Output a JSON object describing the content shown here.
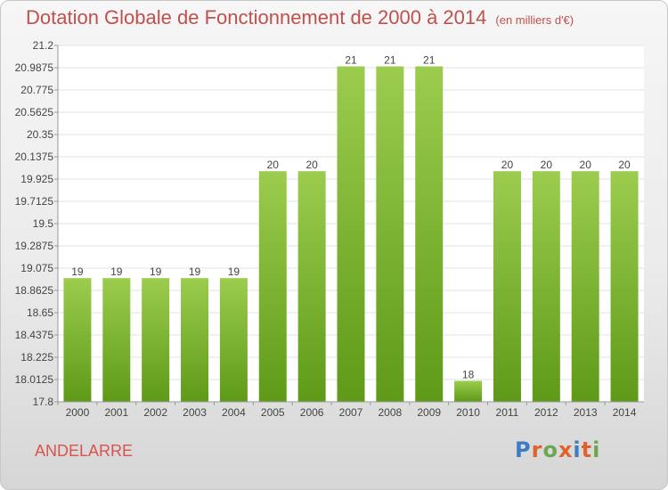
{
  "title": "Dotation Globale de Fonctionnement de 2000 à 2014",
  "subtitle": "(en milliers d'€)",
  "commune": "ANDELARRE",
  "logo": {
    "text": "Proxiti",
    "colors": [
      "#3b7dc4",
      "#e0632d",
      "#6aa84f",
      "#e0632d",
      "#3b7dc4",
      "#e0632d",
      "#6aa84f"
    ]
  },
  "chart_data": {
    "type": "bar",
    "categories": [
      "2000",
      "2001",
      "2002",
      "2003",
      "2004",
      "2005",
      "2006",
      "2007",
      "2008",
      "2009",
      "2010",
      "2011",
      "2012",
      "2013",
      "2014"
    ],
    "values": [
      19,
      19,
      19,
      19,
      19,
      20,
      20,
      21,
      21,
      21,
      18,
      20,
      20,
      20,
      20
    ],
    "plotted_values": [
      18.98,
      18.98,
      18.98,
      18.98,
      18.98,
      20.0,
      20.0,
      21.0,
      21.0,
      21.0,
      18.0,
      20.0,
      20.0,
      20.0,
      20.0
    ],
    "data_labels": [
      "19",
      "19",
      "19",
      "19",
      "19",
      "20",
      "20",
      "21",
      "21",
      "21",
      "18",
      "20",
      "20",
      "20",
      "20"
    ],
    "ylim": [
      17.8,
      21.2
    ],
    "yticks": [
      "21.2",
      "20.9875",
      "20.775",
      "20.5625",
      "20.35",
      "20.1375",
      "19.925",
      "19.7125",
      "19.5",
      "19.2875",
      "19.075",
      "18.8625",
      "18.65",
      "18.4375",
      "18.225",
      "18.0125",
      "17.8"
    ],
    "grid": true,
    "bar_color_top": "#9ccc4e",
    "bar_color_bottom": "#5e9a18"
  }
}
